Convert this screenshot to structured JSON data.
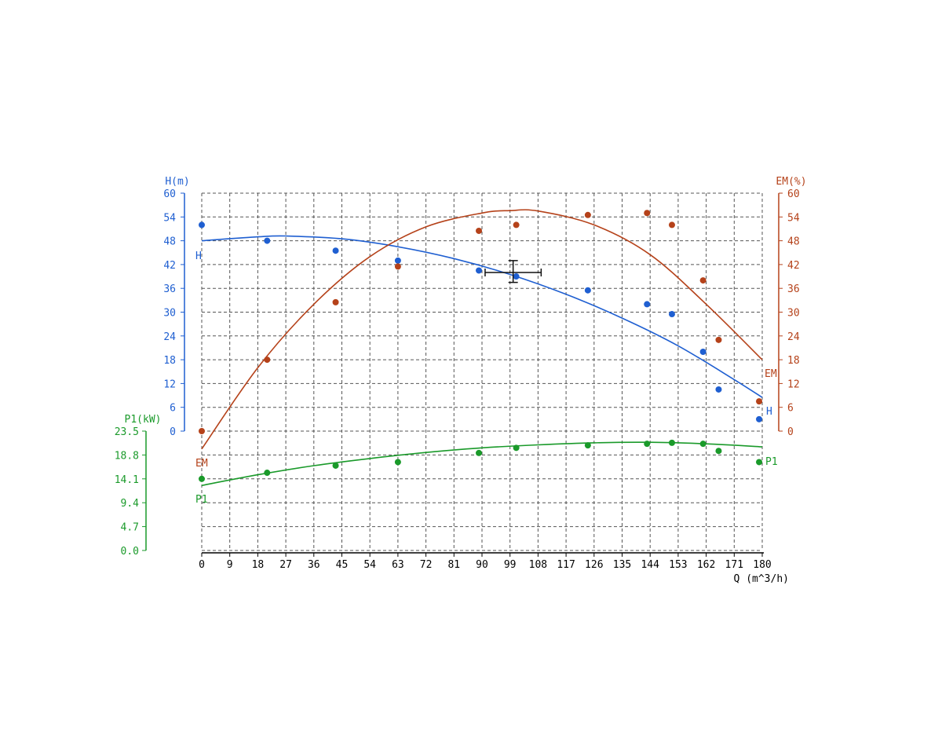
{
  "chart_data": {
    "type": "scatter",
    "title": "",
    "xlabel": "Q (m^3/h)",
    "x_ticks": [
      "0",
      "9",
      "18",
      "27",
      "36",
      "45",
      "54",
      "63",
      "72",
      "81",
      "90",
      "99",
      "108",
      "117",
      "126",
      "135",
      "144",
      "153",
      "162",
      "171",
      "180"
    ],
    "xlim": [
      0,
      180
    ],
    "grid": true,
    "axes": {
      "H": {
        "label": "H(m)",
        "side": "left",
        "ticks": [
          "0",
          "6",
          "12",
          "18",
          "24",
          "30",
          "36",
          "42",
          "48",
          "54",
          "60"
        ],
        "ylim": [
          0,
          60
        ],
        "color": "#1f5fd1"
      },
      "EM": {
        "label": "EM(%)",
        "side": "right",
        "ticks": [
          "0",
          "6",
          "12",
          "18",
          "24",
          "30",
          "36",
          "42",
          "48",
          "54",
          "60"
        ],
        "ylim": [
          0,
          60
        ],
        "color": "#b5421a"
      },
      "P1": {
        "label": "P1(kW)",
        "side": "left",
        "ticks": [
          "0.0",
          "4.7",
          "9.4",
          "14.1",
          "18.8",
          "23.5"
        ],
        "ylim": [
          0,
          23.5
        ],
        "color": "#1a9a2a"
      }
    },
    "series": [
      {
        "name": "H",
        "axis": "H",
        "color": "#1f5fd1",
        "points": [
          [
            0,
            52
          ],
          [
            21,
            48
          ],
          [
            43,
            45.5
          ],
          [
            63,
            43
          ],
          [
            89,
            40.5
          ],
          [
            101,
            39
          ],
          [
            124,
            35.5
          ],
          [
            143,
            32
          ],
          [
            151,
            29.5
          ],
          [
            161,
            20
          ],
          [
            166,
            10.5
          ],
          [
            179,
            3
          ]
        ],
        "fit": [
          [
            0,
            48
          ],
          [
            18,
            49
          ],
          [
            27,
            49.2
          ],
          [
            45,
            48.5
          ],
          [
            63,
            46.5
          ],
          [
            81,
            43.5
          ],
          [
            99,
            39.5
          ],
          [
            117,
            34.5
          ],
          [
            135,
            28.5
          ],
          [
            153,
            21.5
          ],
          [
            171,
            13
          ],
          [
            180,
            8.5
          ]
        ]
      },
      {
        "name": "EM",
        "axis": "EM",
        "color": "#b5421a",
        "points": [
          [
            0,
            0
          ],
          [
            21,
            18
          ],
          [
            43,
            32.5
          ],
          [
            63,
            41.5
          ],
          [
            89,
            50.5
          ],
          [
            101,
            52
          ],
          [
            124,
            54.5
          ],
          [
            143,
            55
          ],
          [
            151,
            52
          ],
          [
            161,
            38
          ],
          [
            166,
            23
          ],
          [
            179,
            7.5
          ]
        ],
        "fit": [
          [
            0,
            -4.5
          ],
          [
            18,
            16
          ],
          [
            36,
            32
          ],
          [
            54,
            44
          ],
          [
            72,
            51.5
          ],
          [
            90,
            55
          ],
          [
            99,
            55.6
          ],
          [
            108,
            55.5
          ],
          [
            126,
            52
          ],
          [
            144,
            44.5
          ],
          [
            162,
            32
          ],
          [
            180,
            18
          ]
        ]
      },
      {
        "name": "P1",
        "axis": "P1",
        "color": "#1a9a2a",
        "points": [
          [
            0,
            14.1
          ],
          [
            21,
            15.3
          ],
          [
            43,
            16.7
          ],
          [
            63,
            17.4
          ],
          [
            89,
            19.2
          ],
          [
            101,
            20.2
          ],
          [
            124,
            20.7
          ],
          [
            143,
            21
          ],
          [
            151,
            21.2
          ],
          [
            161,
            21
          ],
          [
            166,
            19.6
          ],
          [
            179,
            17.4
          ]
        ],
        "fit": [
          [
            0,
            12.8
          ],
          [
            18,
            14.9
          ],
          [
            36,
            16.7
          ],
          [
            54,
            18.1
          ],
          [
            72,
            19.3
          ],
          [
            90,
            20.2
          ],
          [
            108,
            20.8
          ],
          [
            126,
            21.2
          ],
          [
            144,
            21.3
          ],
          [
            162,
            21.0
          ],
          [
            180,
            20.4
          ]
        ]
      }
    ],
    "operating_point": {
      "x": 100,
      "y": 40,
      "x_err": [
        91,
        109
      ],
      "y_err": [
        37.5,
        43
      ]
    }
  }
}
